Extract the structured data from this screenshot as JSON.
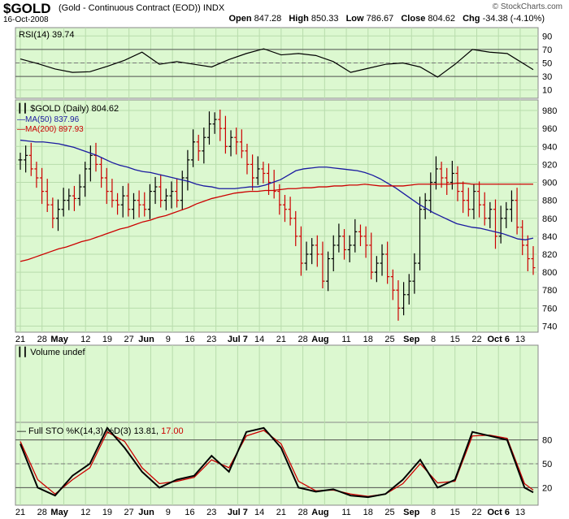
{
  "header": {
    "symbol": "$GOLD",
    "name": "(Gold - Continuous Contract (EOD))",
    "exchange": "INDX",
    "date": "16-Oct-2008",
    "open_label": "Open",
    "open": "847.28",
    "high_label": "High",
    "high": "850.33",
    "low_label": "Low",
    "low": "786.67",
    "close_label": "Close",
    "close": "804.62",
    "chg_label": "Chg",
    "chg": "-34.38 (-4.10%)",
    "copyright": "© StockCharts.com"
  },
  "colors": {
    "panel_bg": "#dcf8d0",
    "grid": "#b8dcac",
    "price_up": "#000000",
    "price_down": "#cc0000",
    "ma50": "#1a1aa0",
    "ma200": "#cc0000",
    "stoch_k": "#000000",
    "stoch_d": "#cc0000",
    "rsi_fill": "#777777"
  },
  "x_axis": {
    "labels": [
      {
        "d": 0,
        "t": "21"
      },
      {
        "d": 5,
        "t": "28"
      },
      {
        "d": 9,
        "t": "May"
      },
      {
        "d": 15,
        "t": "12"
      },
      {
        "d": 20,
        "t": "19"
      },
      {
        "d": 25,
        "t": "27"
      },
      {
        "d": 29,
        "t": "Jun"
      },
      {
        "d": 34,
        "t": "9"
      },
      {
        "d": 39,
        "t": "16"
      },
      {
        "d": 44,
        "t": "23"
      },
      {
        "d": 50,
        "t": "Jul 7"
      },
      {
        "d": 55,
        "t": "14"
      },
      {
        "d": 60,
        "t": "21"
      },
      {
        "d": 65,
        "t": "28"
      },
      {
        "d": 69,
        "t": "Aug"
      },
      {
        "d": 75,
        "t": "11"
      },
      {
        "d": 80,
        "t": "18"
      },
      {
        "d": 85,
        "t": "25"
      },
      {
        "d": 90,
        "t": "Sep"
      },
      {
        "d": 95,
        "t": "8"
      },
      {
        "d": 100,
        "t": "15"
      },
      {
        "d": 105,
        "t": "22"
      },
      {
        "d": 110,
        "t": "Oct 6"
      },
      {
        "d": 115,
        "t": "13"
      }
    ],
    "bold": [
      "May",
      "Jun",
      "Jul 7",
      "Aug",
      "Sep",
      "Oct 6"
    ]
  },
  "chart_data": [
    {
      "type": "line",
      "panel": "rsi",
      "legend": "RSI(14) 39.74",
      "ylim": [
        0,
        100
      ],
      "ticks": [
        10,
        30,
        50,
        70,
        90
      ],
      "x": [
        0,
        4,
        8,
        12,
        16,
        20,
        24,
        28,
        32,
        36,
        40,
        44,
        48,
        52,
        56,
        60,
        64,
        68,
        72,
        76,
        80,
        84,
        88,
        92,
        96,
        100,
        104,
        108,
        112,
        116,
        118
      ],
      "values": [
        56,
        49,
        41,
        36,
        37,
        45,
        54,
        66,
        48,
        52,
        48,
        44,
        55,
        64,
        71,
        62,
        64,
        61,
        52,
        36,
        42,
        48,
        50,
        44,
        29,
        48,
        70,
        66,
        64,
        48,
        40
      ]
    },
    {
      "type": "bar",
      "subtype": "ohlc",
      "panel": "price",
      "legend": "$GOLD (Daily) 804.62",
      "ylim": [
        735,
        990
      ],
      "ticks": [
        740,
        760,
        780,
        800,
        820,
        840,
        860,
        880,
        900,
        920,
        940,
        960,
        980
      ],
      "close": [
        925,
        930,
        915,
        905,
        890,
        875,
        860,
        870,
        880,
        885,
        882,
        895,
        915,
        930,
        920,
        905,
        890,
        880,
        875,
        885,
        870,
        880,
        875,
        870,
        890,
        895,
        880,
        885,
        890,
        880,
        905,
        925,
        945,
        935,
        950,
        965,
        970,
        960,
        940,
        950,
        945,
        935,
        920,
        905,
        915,
        910,
        900,
        890,
        875,
        870,
        860,
        840,
        810,
        820,
        830,
        820,
        790,
        815,
        830,
        840,
        825,
        830,
        845,
        840,
        830,
        800,
        810,
        820,
        795,
        780,
        760,
        775,
        790,
        810,
        870,
        880,
        900,
        915,
        905,
        900,
        910,
        890,
        880,
        870,
        890,
        875,
        860,
        870,
        840,
        860,
        870,
        880,
        850,
        830,
        815,
        805
      ],
      "series": [
        {
          "name": "MA(50) 837.96",
          "values": [
            947,
            946,
            945,
            945,
            944,
            943,
            941,
            939,
            936,
            933,
            930,
            926,
            922,
            919,
            917,
            914,
            912,
            911,
            909,
            907,
            905,
            903,
            901,
            898,
            896,
            895,
            893,
            893,
            893,
            894,
            895,
            895,
            897,
            900,
            903,
            908,
            913,
            915,
            916,
            917,
            917,
            916,
            915,
            914,
            913,
            911,
            908,
            904,
            899,
            894,
            888,
            882,
            876,
            871,
            866,
            862,
            858,
            854,
            852,
            850,
            849,
            847,
            845,
            843,
            840,
            837,
            836,
            838
          ]
        },
        {
          "name": "MA(200) 897.93",
          "values": [
            812,
            814,
            817,
            820,
            823,
            826,
            828,
            831,
            834,
            836,
            839,
            842,
            845,
            848,
            850,
            853,
            856,
            858,
            861,
            863,
            866,
            869,
            872,
            876,
            879,
            882,
            884,
            886,
            888,
            889,
            890,
            890,
            891,
            891,
            892,
            893,
            893,
            894,
            894,
            895,
            895,
            896,
            896,
            897,
            897,
            898,
            897,
            896,
            896,
            896,
            896,
            897,
            898,
            898,
            898,
            898,
            898,
            899,
            899,
            898,
            898,
            898,
            898,
            898,
            898,
            898,
            898,
            898
          ]
        }
      ]
    },
    {
      "type": "bar",
      "panel": "volume",
      "legend": "Volume undef",
      "values": []
    },
    {
      "type": "line",
      "panel": "stoch",
      "legend": "Full STO %K(14,3) %D(3)",
      "legend_k": "13.81",
      "legend_d": "17.00",
      "ylim": [
        0,
        100
      ],
      "ticks": [
        20,
        50,
        80
      ],
      "x": [
        0,
        4,
        8,
        12,
        16,
        20,
        24,
        28,
        32,
        36,
        40,
        44,
        48,
        52,
        56,
        60,
        64,
        68,
        72,
        76,
        80,
        84,
        88,
        92,
        96,
        100,
        104,
        108,
        112,
        116,
        118
      ],
      "series": [
        {
          "name": "%K",
          "values": [
            75,
            20,
            10,
            35,
            50,
            95,
            70,
            40,
            20,
            30,
            35,
            60,
            40,
            90,
            95,
            70,
            20,
            15,
            18,
            10,
            8,
            12,
            30,
            55,
            20,
            30,
            90,
            85,
            80,
            20,
            14
          ]
        },
        {
          "name": "%D",
          "values": [
            78,
            30,
            12,
            30,
            45,
            90,
            78,
            45,
            25,
            28,
            33,
            55,
            45,
            85,
            92,
            75,
            28,
            16,
            17,
            12,
            9,
            12,
            25,
            50,
            26,
            28,
            85,
            86,
            82,
            25,
            17
          ]
        }
      ]
    }
  ]
}
